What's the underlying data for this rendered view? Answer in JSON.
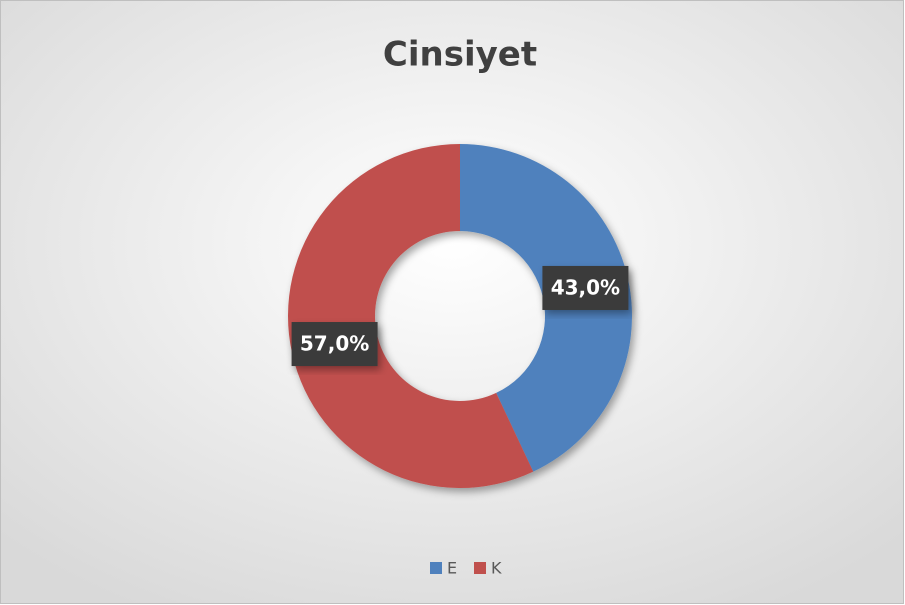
{
  "chart_data": {
    "type": "doughnut",
    "title": "Cinsiyet",
    "categories": [
      "E",
      "K"
    ],
    "values": [
      43.0,
      57.0
    ],
    "value_labels": [
      "43,0%",
      "57,0%"
    ],
    "colors": [
      "#4f81bd",
      "#c0504d"
    ],
    "legend": "bottom"
  }
}
